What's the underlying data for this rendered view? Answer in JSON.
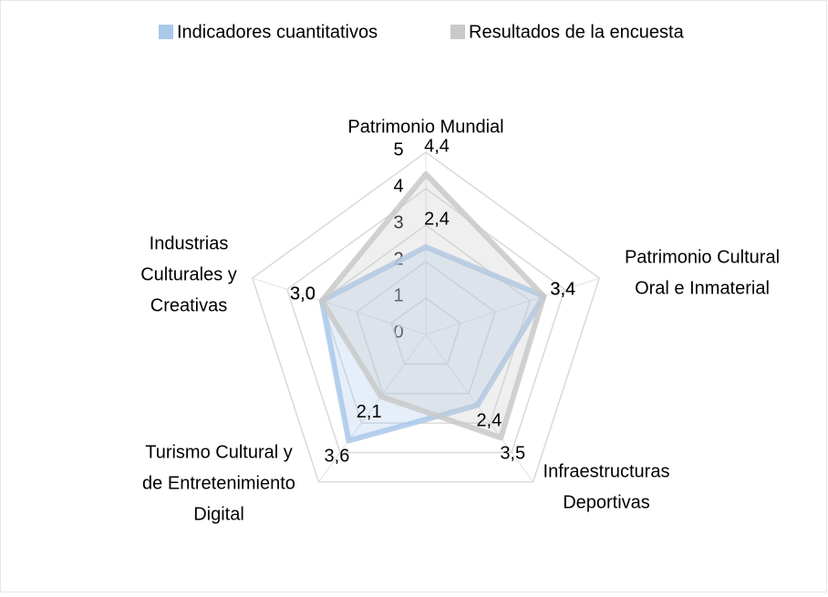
{
  "chart_data": {
    "type": "radar",
    "categories": [
      [
        "Patrimonio Mundial"
      ],
      [
        "Patrimonio Cultural",
        "Oral e Inmaterial"
      ],
      [
        "Infraestructuras",
        "Deportivas"
      ],
      [
        "Turismo Cultural y",
        "de Entretenimiento",
        "Digital"
      ],
      [
        "Industrias",
        "Culturales y",
        "Creativas"
      ]
    ],
    "series": [
      {
        "name": "Indicadores cuantitativos",
        "color": "#a9c8ea",
        "values": [
          2.4,
          3.4,
          2.4,
          3.6,
          3.0
        ],
        "value_labels": [
          "2,4",
          "3,4",
          "2,4",
          "3,6",
          "3,0"
        ]
      },
      {
        "name": "Resultados de la encuesta",
        "color": "#c9c9c9",
        "values": [
          4.4,
          3.4,
          3.5,
          2.1,
          3.0
        ],
        "value_labels": [
          "4,4",
          "3,4",
          "3,5",
          "2,1",
          "3,0"
        ]
      }
    ],
    "rlim": [
      0,
      5
    ],
    "rticks": [
      0,
      1,
      2,
      3,
      4,
      5
    ],
    "grid": true,
    "legend": "top"
  }
}
